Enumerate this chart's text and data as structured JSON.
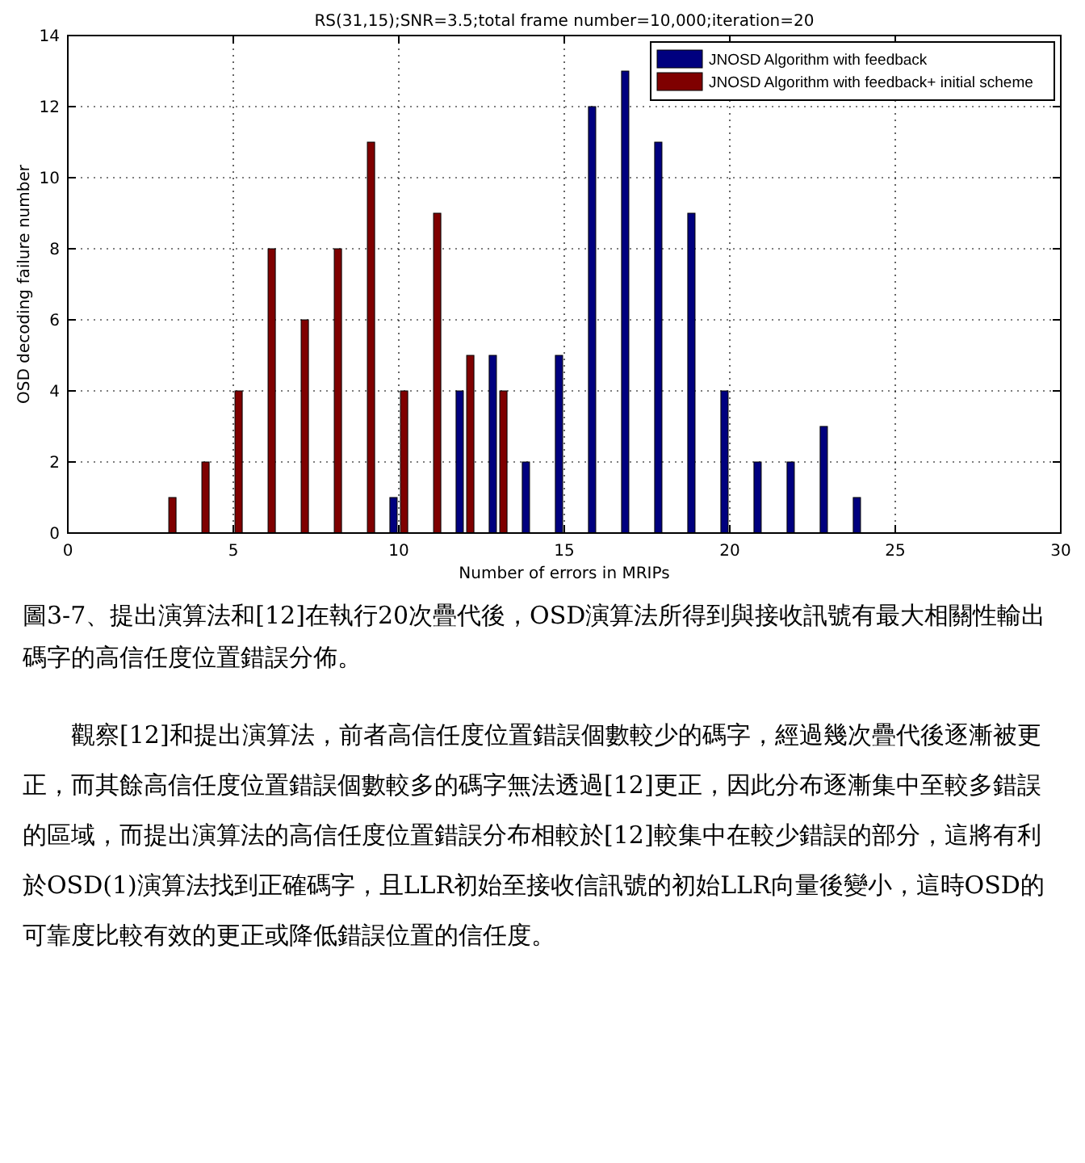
{
  "chart_data": {
    "type": "bar",
    "title": "RS(31,15);SNR=3.5;total frame number=10,000;iteration=20",
    "xlabel": "Number of errors in MRIPs",
    "ylabel": "OSD decoding failure number",
    "series": [
      {
        "name": "JNOSD Algorithm with feedback",
        "color": "#00007f",
        "x": [
          10,
          12,
          13,
          14,
          15,
          16,
          17,
          18,
          19,
          20,
          21,
          22,
          23,
          24
        ],
        "values": [
          1,
          4,
          5,
          2,
          5,
          12,
          13,
          11,
          9,
          4,
          2,
          2,
          3,
          1
        ]
      },
      {
        "name": "JNOSD Algorithm with feedback+ initial scheme",
        "color": "#7f0000",
        "x": [
          3,
          4,
          5,
          6,
          7,
          8,
          9,
          10,
          11,
          12,
          13
        ],
        "values": [
          1,
          2,
          4,
          8,
          6,
          8,
          11,
          4,
          9,
          5,
          4
        ]
      }
    ],
    "xlim": [
      0,
      30
    ],
    "xticks": [
      0,
      5,
      10,
      15,
      20,
      25,
      30
    ],
    "ylim": [
      0,
      14
    ],
    "yticks": [
      0,
      2,
      4,
      6,
      8,
      10,
      12,
      14
    ],
    "grid": true,
    "legend": "top right",
    "annotations": [
      "圖3-7、提出演算法和[12]在執行20次疊代後，OSD演算法所得到與接收訊號有最大相關性輸出碼字的高信任度位置錯誤分佈。",
      "觀察[12]和提出演算法，前者高信任度位置錯誤個數較少的碼字，經過幾次疊代後逐漸被更正，而其餘高信任度位置錯誤個數較多的碼字無法透過[12]更正，因此分布逐漸集中至較多錯誤的區域，而提出演算法的高信任度位置錯誤分布相較於[12]較集中在較少錯誤的部分，這將有利於OSD(1)演算法找到正確碼字，且LLR初始至接收信訊號的初始LLR向量後變小，這時OSD的可靠度比較有效的更正或降低錯誤位置的信任度。"
    ]
  }
}
